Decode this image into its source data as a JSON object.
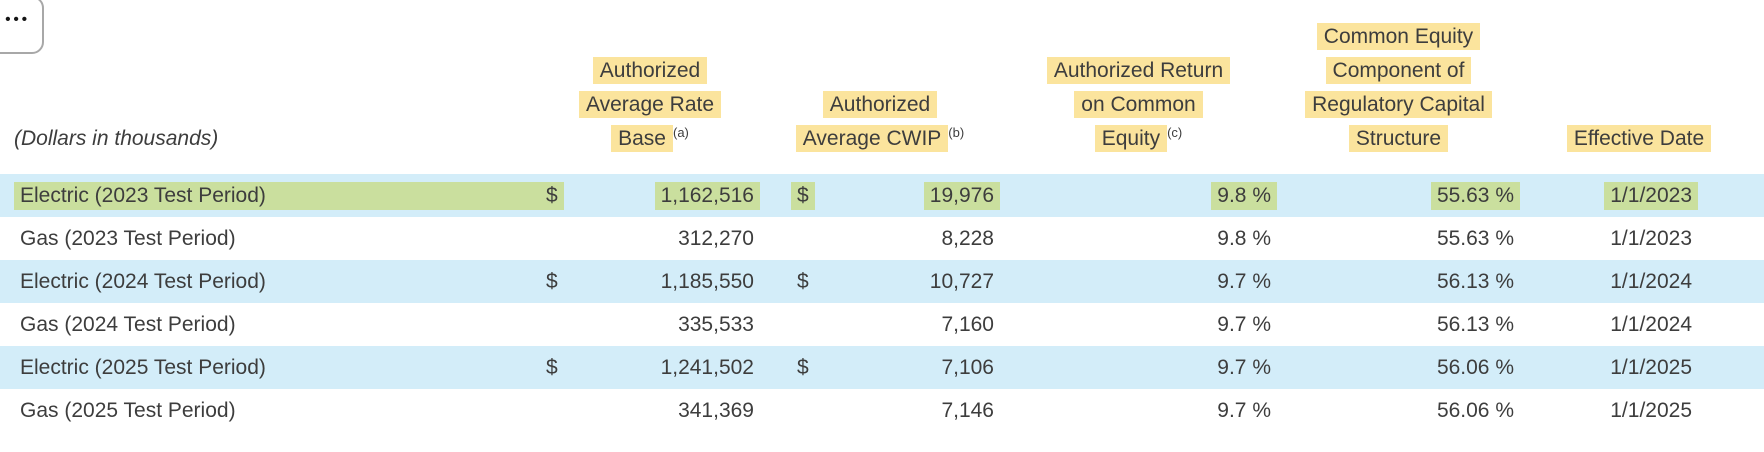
{
  "overflow_button": {
    "label": "•••"
  },
  "table": {
    "units_note": "(Dollars in thousands)",
    "columns": {
      "rate_base": {
        "lines": [
          "Authorized",
          "Average Rate",
          "Base"
        ],
        "sup": "(a)"
      },
      "cwip": {
        "lines": [
          "Authorized",
          "Average CWIP"
        ],
        "sup": "(b)"
      },
      "roe": {
        "lines": [
          "Authorized Return",
          "on Common",
          "Equity"
        ],
        "sup": "(c)"
      },
      "equity_component": {
        "lines": [
          "Common Equity",
          "Component of",
          "Regulatory Capital",
          "Structure"
        ]
      },
      "effective_date": {
        "lines": [
          "Effective Date"
        ]
      }
    },
    "rows": [
      {
        "label": "Electric (2023 Test Period)",
        "currency_rate_base": "$",
        "rate_base": "1,162,516",
        "currency_cwip": "$",
        "cwip": "19,976",
        "roe": "9.8 %",
        "equity_component": "55.63 %",
        "effective_date": "1/1/2023"
      },
      {
        "label": "Gas (2023 Test Period)",
        "currency_rate_base": "",
        "rate_base": "312,270",
        "currency_cwip": "",
        "cwip": "8,228",
        "roe": "9.8 %",
        "equity_component": "55.63 %",
        "effective_date": "1/1/2023"
      },
      {
        "label": "Electric (2024 Test Period)",
        "currency_rate_base": "$",
        "rate_base": "1,185,550",
        "currency_cwip": "$",
        "cwip": "10,727",
        "roe": "9.7 %",
        "equity_component": "56.13 %",
        "effective_date": "1/1/2024"
      },
      {
        "label": "Gas (2024 Test Period)",
        "currency_rate_base": "",
        "rate_base": "335,533",
        "currency_cwip": "",
        "cwip": "7,160",
        "roe": "9.7 %",
        "equity_component": "56.13 %",
        "effective_date": "1/1/2024"
      },
      {
        "label": "Electric (2025 Test Period)",
        "currency_rate_base": "$",
        "rate_base": "1,241,502",
        "currency_cwip": "$",
        "cwip": "7,106",
        "roe": "9.7 %",
        "equity_component": "56.06 %",
        "effective_date": "1/1/2025"
      },
      {
        "label": "Gas (2025 Test Period)",
        "currency_rate_base": "",
        "rate_base": "341,369",
        "currency_cwip": "",
        "cwip": "7,146",
        "roe": "9.7 %",
        "equity_component": "56.06 %",
        "effective_date": "1/1/2025"
      }
    ]
  },
  "colors": {
    "header_highlight_yellow": "#fbe49d",
    "selection_highlight_green": "#cadf9e",
    "row_shade_blue": "#d3edf9",
    "text": "#3d3d3d"
  }
}
